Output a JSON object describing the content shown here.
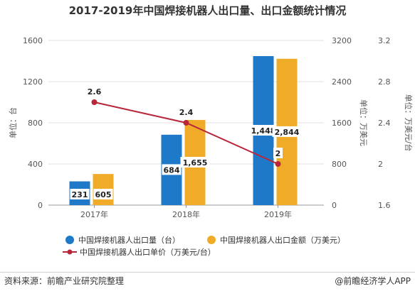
{
  "title": "2017-2019年中国焊接机器人出口量、出口金额统计情况",
  "footer": {
    "source": "资料来源：前瞻产业研究院整理",
    "brand": "@前瞻经济学人APP"
  },
  "chart_data": {
    "type": "bar",
    "categories": [
      "2017年",
      "2018年",
      "2019年"
    ],
    "series": [
      {
        "name": "中国焊接机器人出口量（台）",
        "type": "bar",
        "axis": "left",
        "color": "#1e7ac8",
        "values": [
          231,
          684,
          1448
        ],
        "labels": [
          "231",
          "684",
          "1,448"
        ]
      },
      {
        "name": "中国焊接机器人出口金额（万美元）",
        "type": "bar",
        "axis": "middle",
        "color": "#f0ac28",
        "values": [
          605,
          1655,
          2844
        ],
        "labels": [
          "605",
          "1,655",
          "2,844"
        ]
      },
      {
        "name": "中国焊接机器人出口单价（万美元/台）",
        "type": "line",
        "axis": "right",
        "color": "#b8263a",
        "values": [
          2.6,
          2.4,
          2
        ],
        "labels": [
          "2.6",
          "2.4",
          "2"
        ]
      }
    ],
    "axes": {
      "left": {
        "label": "单位：台",
        "ylim": [
          0,
          1600
        ],
        "ticks": [
          "0",
          "400",
          "800",
          "1200",
          "1600"
        ]
      },
      "middle": {
        "label": "单位：万美元",
        "ylim": [
          0,
          3200
        ],
        "ticks": [
          "0",
          "800",
          "1600",
          "2400",
          "3200"
        ]
      },
      "right": {
        "label": "单位：万美元/台",
        "ylim": [
          1.6,
          3.2
        ],
        "ticks": [
          "1.6",
          "2",
          "2.4",
          "2.8",
          "3.2"
        ]
      }
    },
    "grid": true,
    "legend_position": "bottom"
  }
}
